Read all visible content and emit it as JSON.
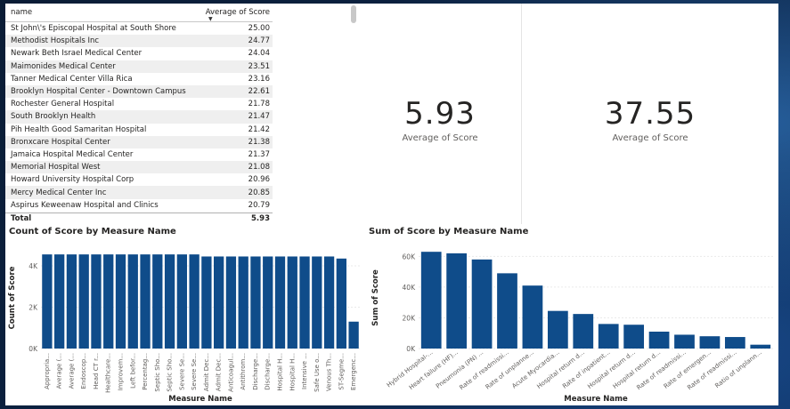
{
  "table": {
    "columns": [
      "name",
      "Average of Score"
    ],
    "rows": [
      [
        "St John\\'s Episcopal Hospital at South Shore",
        "25.00"
      ],
      [
        "Methodist Hospitals Inc",
        "24.77"
      ],
      [
        "Newark Beth Israel Medical Center",
        "24.04"
      ],
      [
        "Maimonides Medical Center",
        "23.51"
      ],
      [
        "Tanner Medical Center Villa Rica",
        "23.16"
      ],
      [
        "Brooklyn Hospital Center - Downtown Campus",
        "22.61"
      ],
      [
        "Rochester General Hospital",
        "21.78"
      ],
      [
        "South Brooklyn Health",
        "21.47"
      ],
      [
        "Pih Health Good Samaritan Hospital",
        "21.42"
      ],
      [
        "Bronxcare Hospital Center",
        "21.38"
      ],
      [
        "Jamaica Hospital Medical Center",
        "21.37"
      ],
      [
        "Memorial Hospital West",
        "21.08"
      ],
      [
        "Howard University Hospital Corp",
        "20.96"
      ],
      [
        "Mercy Medical Center Inc",
        "20.85"
      ],
      [
        "Aspirus Keweenaw Hospital and Clinics",
        "20.79"
      ]
    ],
    "total_label": "Total",
    "total_value": "5.93"
  },
  "cards": [
    {
      "value": "5.93",
      "label": "Average of Score"
    },
    {
      "value": "37.55",
      "label": "Average of Score"
    }
  ],
  "colors": {
    "bar": "#0f4c8a",
    "accent_bg": "#0b1f3a"
  },
  "chart_data": [
    {
      "type": "bar",
      "title": "Count of Score by Measure Name",
      "xlabel": "Measure Name",
      "ylabel": "Count of Score",
      "yticks": [
        "0K",
        "2K",
        "4K"
      ],
      "ytick_values": [
        0,
        2000,
        4000
      ],
      "ylim": [
        0,
        4900
      ],
      "categories": [
        "Appropria...",
        "Average (...",
        "Average (...",
        "Endoscop...",
        "Head CT r...",
        "Healthcare...",
        "Improvem...",
        "Left befor...",
        "Percentag...",
        "Septic Sho...",
        "Septic Sho...",
        "Severe Se...",
        "Severe Se...",
        "Admit Dec...",
        "Admit Dec...",
        "Anticoagul...",
        "Antithrom...",
        "Discharge...",
        "Discharge...",
        "Hospital H...",
        "Hospital H...",
        "Intensive ...",
        "Safe Use o...",
        "Venous Th...",
        "ST-Segme...",
        "Emergenc..."
      ],
      "values": [
        4550,
        4550,
        4550,
        4550,
        4550,
        4550,
        4550,
        4550,
        4550,
        4550,
        4550,
        4550,
        4550,
        4450,
        4450,
        4450,
        4450,
        4450,
        4450,
        4450,
        4450,
        4450,
        4450,
        4450,
        4350,
        1300
      ]
    },
    {
      "type": "bar",
      "title": "Sum of Score by Measure Name",
      "xlabel": "Measure Name",
      "ylabel": "Sum of Score",
      "yticks": [
        "0K",
        "20K",
        "40K",
        "60K"
      ],
      "ytick_values": [
        0,
        20000,
        40000,
        60000
      ],
      "ylim": [
        0,
        66000
      ],
      "categories": [
        "Hybrid Hospital-...",
        "Heart failure (HF)...",
        "Pneumonia (PN) ...",
        "Rate of readmissi...",
        "Rate of unplanne...",
        "Acute Myocardia...",
        "Hospital return d...",
        "Rate of inpatient...",
        "Hospital return d...",
        "Hospital return d...",
        "Rate of readmissi...",
        "Rate of emergen...",
        "Rate of readmissi...",
        "Ratio of unplann..."
      ],
      "values": [
        63000,
        62000,
        58000,
        49000,
        41000,
        24500,
        22500,
        16000,
        15500,
        11000,
        9000,
        8000,
        7500,
        2500
      ]
    }
  ]
}
